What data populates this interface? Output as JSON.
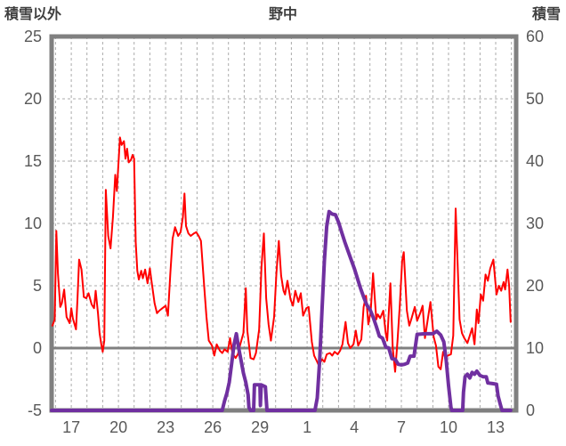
{
  "header": {
    "left_axis_title": "積雪以外",
    "chart_title": "野中",
    "right_axis_title": "積雪"
  },
  "chart_data": {
    "type": "line",
    "title": "野中",
    "grid": true,
    "legend_position": "none",
    "x": {
      "label": "",
      "range": [
        15.75,
        45.3
      ],
      "grid_step": 1,
      "tick_days": [
        17,
        20,
        23,
        26,
        29,
        32,
        35,
        38,
        41,
        44
      ],
      "tick_labels": [
        "17",
        "20",
        "23",
        "26",
        "29",
        "1",
        "4",
        "7",
        "10",
        "13"
      ]
    },
    "y_left": {
      "label": "積雪以外",
      "range": [
        -5,
        25
      ],
      "ticks": [
        25,
        20,
        15,
        10,
        5,
        0,
        -5
      ],
      "grid_ticks": [
        5,
        10,
        15,
        20
      ],
      "zero_line": 0
    },
    "y_right": {
      "label": "積雪",
      "range": [
        0,
        60
      ],
      "ticks": [
        60,
        50,
        40,
        30,
        20,
        10,
        0
      ]
    },
    "style": {
      "grid_color": "#ababab",
      "border_color": "#808080",
      "zero_line_color": "#808080",
      "tick_color": "#595959",
      "background": "#ffffff"
    },
    "series": [
      {
        "id": "non-snow-series-line",
        "name": "積雪以外",
        "axis": "left",
        "color": "#ff0000",
        "width": 2,
        "points": [
          [
            15.8,
            1.8
          ],
          [
            15.95,
            2.3
          ],
          [
            16.05,
            9.4
          ],
          [
            16.15,
            6.0
          ],
          [
            16.3,
            3.3
          ],
          [
            16.4,
            3.6
          ],
          [
            16.55,
            4.7
          ],
          [
            16.7,
            2.5
          ],
          [
            16.9,
            2.0
          ],
          [
            17.0,
            3.2
          ],
          [
            17.1,
            2.4
          ],
          [
            17.3,
            1.5
          ],
          [
            17.4,
            4.0
          ],
          [
            17.5,
            7.1
          ],
          [
            17.65,
            6.3
          ],
          [
            17.8,
            4.1
          ],
          [
            17.95,
            4.0
          ],
          [
            18.1,
            4.4
          ],
          [
            18.3,
            3.5
          ],
          [
            18.45,
            3.2
          ],
          [
            18.55,
            4.6
          ],
          [
            18.7,
            2.8
          ],
          [
            18.8,
            1.2
          ],
          [
            18.9,
            0.4
          ],
          [
            19.0,
            -0.3
          ],
          [
            19.1,
            0.6
          ],
          [
            19.2,
            12.7
          ],
          [
            19.35,
            9.0
          ],
          [
            19.5,
            8.0
          ],
          [
            19.65,
            10.5
          ],
          [
            19.8,
            13.9
          ],
          [
            19.9,
            12.6
          ],
          [
            20.0,
            14.8
          ],
          [
            20.1,
            16.9
          ],
          [
            20.2,
            16.3
          ],
          [
            20.35,
            16.6
          ],
          [
            20.45,
            15.2
          ],
          [
            20.55,
            16.0
          ],
          [
            20.65,
            14.9
          ],
          [
            20.8,
            15.1
          ],
          [
            20.9,
            15.5
          ],
          [
            21.0,
            15.2
          ],
          [
            21.1,
            8.5
          ],
          [
            21.2,
            6.2
          ],
          [
            21.3,
            5.5
          ],
          [
            21.45,
            6.2
          ],
          [
            21.55,
            5.6
          ],
          [
            21.7,
            6.3
          ],
          [
            21.85,
            5.2
          ],
          [
            22.0,
            6.4
          ],
          [
            22.1,
            5.4
          ],
          [
            22.3,
            3.6
          ],
          [
            22.45,
            2.8
          ],
          [
            22.6,
            3.0
          ],
          [
            22.8,
            3.2
          ],
          [
            23.0,
            3.4
          ],
          [
            23.15,
            2.6
          ],
          [
            23.3,
            6.0
          ],
          [
            23.45,
            8.8
          ],
          [
            23.6,
            9.7
          ],
          [
            23.8,
            9.0
          ],
          [
            23.95,
            9.3
          ],
          [
            24.1,
            10.5
          ],
          [
            24.2,
            12.4
          ],
          [
            24.3,
            9.8
          ],
          [
            24.45,
            9.2
          ],
          [
            24.6,
            9.0
          ],
          [
            24.8,
            9.2
          ],
          [
            24.95,
            9.3
          ],
          [
            25.1,
            9.0
          ],
          [
            25.25,
            8.6
          ],
          [
            25.45,
            5.0
          ],
          [
            25.6,
            2.5
          ],
          [
            25.75,
            0.6
          ],
          [
            25.95,
            0.2
          ],
          [
            26.1,
            -0.6
          ],
          [
            26.25,
            0.3
          ],
          [
            26.45,
            -0.2
          ],
          [
            26.6,
            -0.4
          ],
          [
            26.75,
            -0.1
          ],
          [
            26.95,
            -0.3
          ],
          [
            27.1,
            0.8
          ],
          [
            27.25,
            -0.4
          ],
          [
            27.45,
            -0.8
          ],
          [
            27.6,
            -0.5
          ],
          [
            27.75,
            0.3
          ],
          [
            27.95,
            1.2
          ],
          [
            28.1,
            4.8
          ],
          [
            28.2,
            1.4
          ],
          [
            28.4,
            -0.8
          ],
          [
            28.6,
            -0.9
          ],
          [
            28.75,
            -0.4
          ],
          [
            28.95,
            1.5
          ],
          [
            29.1,
            6.5
          ],
          [
            29.25,
            9.2
          ],
          [
            29.4,
            4.0
          ],
          [
            29.55,
            1.9
          ],
          [
            29.7,
            0.6
          ],
          [
            29.9,
            2.5
          ],
          [
            30.05,
            6.0
          ],
          [
            30.2,
            8.6
          ],
          [
            30.35,
            5.8
          ],
          [
            30.5,
            4.6
          ],
          [
            30.6,
            4.3
          ],
          [
            30.75,
            5.4
          ],
          [
            30.95,
            3.9
          ],
          [
            31.1,
            3.4
          ],
          [
            31.25,
            4.6
          ],
          [
            31.45,
            3.7
          ],
          [
            31.6,
            4.4
          ],
          [
            31.75,
            2.6
          ],
          [
            31.95,
            3.2
          ],
          [
            32.1,
            3.3
          ],
          [
            32.3,
            0.5
          ],
          [
            32.45,
            -0.6
          ],
          [
            32.6,
            -1.0
          ],
          [
            32.75,
            -1.4
          ],
          [
            32.95,
            -0.9
          ],
          [
            33.1,
            -1.1
          ],
          [
            33.25,
            -0.5
          ],
          [
            33.45,
            -0.4
          ],
          [
            33.6,
            -0.6
          ],
          [
            33.75,
            -0.3
          ],
          [
            33.95,
            -0.5
          ],
          [
            34.1,
            -0.2
          ],
          [
            34.25,
            0.3
          ],
          [
            34.45,
            2.1
          ],
          [
            34.6,
            0.4
          ],
          [
            34.75,
            0.0
          ],
          [
            34.95,
            0.3
          ],
          [
            35.1,
            1.4
          ],
          [
            35.25,
            0.2
          ],
          [
            35.45,
            0.7
          ],
          [
            35.6,
            3.3
          ],
          [
            35.75,
            4.2
          ],
          [
            35.9,
            1.9
          ],
          [
            36.05,
            3.0
          ],
          [
            36.2,
            6.0
          ],
          [
            36.4,
            2.3
          ],
          [
            36.5,
            2.7
          ],
          [
            36.65,
            2.4
          ],
          [
            36.85,
            3.0
          ],
          [
            37.0,
            1.2
          ],
          [
            37.1,
            0.6
          ],
          [
            37.3,
            5.2
          ],
          [
            37.45,
            0.0
          ],
          [
            37.6,
            -1.9
          ],
          [
            37.75,
            0.5
          ],
          [
            37.9,
            3.5
          ],
          [
            38.05,
            7.0
          ],
          [
            38.15,
            7.7
          ],
          [
            38.35,
            3.0
          ],
          [
            38.5,
            1.8
          ],
          [
            38.65,
            2.4
          ],
          [
            38.85,
            3.3
          ],
          [
            39.0,
            2.2
          ],
          [
            39.2,
            2.8
          ],
          [
            39.35,
            3.4
          ],
          [
            39.5,
            0.8
          ],
          [
            39.7,
            2.5
          ],
          [
            39.85,
            3.7
          ],
          [
            40.05,
            0.9
          ],
          [
            40.2,
            0.2
          ],
          [
            40.35,
            -1.5
          ],
          [
            40.5,
            -1.7
          ],
          [
            40.65,
            -0.3
          ],
          [
            40.8,
            -0.8
          ],
          [
            40.95,
            -0.6
          ],
          [
            41.15,
            -0.5
          ],
          [
            41.3,
            1.0
          ],
          [
            41.45,
            11.2
          ],
          [
            41.6,
            6.0
          ],
          [
            41.7,
            2.3
          ],
          [
            41.85,
            1.2
          ],
          [
            42.0,
            0.8
          ],
          [
            42.2,
            0.4
          ],
          [
            42.35,
            1.0
          ],
          [
            42.5,
            1.6
          ],
          [
            42.65,
            0.3
          ],
          [
            42.8,
            3.1
          ],
          [
            42.9,
            2.0
          ],
          [
            43.05,
            4.3
          ],
          [
            43.2,
            3.8
          ],
          [
            43.35,
            5.9
          ],
          [
            43.5,
            5.4
          ],
          [
            43.65,
            6.4
          ],
          [
            43.85,
            7.1
          ],
          [
            44.05,
            4.3
          ],
          [
            44.2,
            5.0
          ],
          [
            44.35,
            4.6
          ],
          [
            44.5,
            5.3
          ],
          [
            44.6,
            4.7
          ],
          [
            44.75,
            6.3
          ],
          [
            44.85,
            5.0
          ],
          [
            44.95,
            2.1
          ]
        ]
      },
      {
        "id": "snow-depth-series-line",
        "name": "積雪",
        "axis": "right",
        "color": "#7030a0",
        "width": 4,
        "points": [
          [
            15.75,
            0
          ],
          [
            26.6,
            0
          ],
          [
            26.75,
            1.5
          ],
          [
            26.9,
            2.8
          ],
          [
            27.05,
            4.5
          ],
          [
            27.2,
            7.5
          ],
          [
            27.35,
            10.5
          ],
          [
            27.5,
            12.3
          ],
          [
            27.65,
            10.0
          ],
          [
            27.8,
            8.0
          ],
          [
            27.95,
            6.0
          ],
          [
            28.1,
            4.5
          ],
          [
            28.25,
            2.5
          ],
          [
            28.3,
            0.5
          ],
          [
            28.4,
            0
          ],
          [
            28.6,
            0
          ],
          [
            28.65,
            4.1
          ],
          [
            29.0,
            4.1
          ],
          [
            29.03,
            0.8
          ],
          [
            29.08,
            4.1
          ],
          [
            29.35,
            3.8
          ],
          [
            29.45,
            0
          ],
          [
            32.5,
            0
          ],
          [
            32.65,
            2
          ],
          [
            32.8,
            8
          ],
          [
            32.95,
            16
          ],
          [
            33.1,
            24
          ],
          [
            33.25,
            29.5
          ],
          [
            33.4,
            31.9
          ],
          [
            33.6,
            31.5
          ],
          [
            33.8,
            31.4
          ],
          [
            34.0,
            30.2
          ],
          [
            34.2,
            28.6
          ],
          [
            34.4,
            27.0
          ],
          [
            34.6,
            25.6
          ],
          [
            34.8,
            24.2
          ],
          [
            35.0,
            22.8
          ],
          [
            35.2,
            21.2
          ],
          [
            35.4,
            19.6
          ],
          [
            35.6,
            18.2
          ],
          [
            35.8,
            16.9
          ],
          [
            36.0,
            16.2
          ],
          [
            36.2,
            15.0
          ],
          [
            36.4,
            13.5
          ],
          [
            36.6,
            11.9
          ],
          [
            36.8,
            11.6
          ],
          [
            37.0,
            10.2
          ],
          [
            37.2,
            10.0
          ],
          [
            37.4,
            8.3
          ],
          [
            37.6,
            8.2
          ],
          [
            37.8,
            7.4
          ],
          [
            38.0,
            7.3
          ],
          [
            38.2,
            7.4
          ],
          [
            38.4,
            7.6
          ],
          [
            38.55,
            8.7
          ],
          [
            38.8,
            8.7
          ],
          [
            39.0,
            12.2
          ],
          [
            39.5,
            12.3
          ],
          [
            40.0,
            12.3
          ],
          [
            40.25,
            12.7
          ],
          [
            40.5,
            12.1
          ],
          [
            40.7,
            11.0
          ],
          [
            40.85,
            8.0
          ],
          [
            41.0,
            4.0
          ],
          [
            41.15,
            0.5
          ],
          [
            41.2,
            0
          ],
          [
            41.9,
            0
          ],
          [
            41.95,
            2.9
          ],
          [
            42.05,
            5.4
          ],
          [
            42.2,
            5.8
          ],
          [
            42.35,
            5.2
          ],
          [
            42.5,
            6.1
          ],
          [
            42.65,
            5.8
          ],
          [
            42.8,
            6.3
          ],
          [
            43.0,
            5.6
          ],
          [
            43.2,
            5.4
          ],
          [
            43.4,
            5.4
          ],
          [
            43.5,
            4.4
          ],
          [
            43.8,
            4.3
          ],
          [
            44.05,
            4.2
          ],
          [
            44.15,
            2.3
          ],
          [
            44.3,
            0.9
          ],
          [
            44.4,
            0
          ],
          [
            44.95,
            0
          ]
        ]
      }
    ]
  }
}
